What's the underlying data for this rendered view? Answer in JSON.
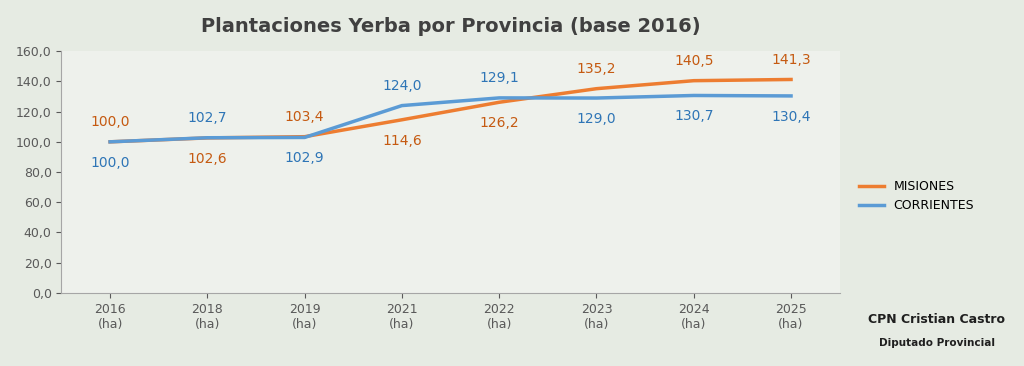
{
  "chart_data": {
    "type": "line",
    "title": "Plantaciones Yerba por Provincia (base 2016)",
    "categories": [
      "2016\n(ha)",
      "2018\n(ha)",
      "2019\n(ha)",
      "2021\n(ha)",
      "2022\n(ha)",
      "2023\n(ha)",
      "2024\n(ha)",
      "2025\n(ha)"
    ],
    "series": [
      {
        "name": "MISIONES",
        "color": "#ed7d31",
        "values": [
          100.0,
          102.6,
          103.4,
          114.6,
          126.2,
          135.2,
          140.5,
          141.3
        ],
        "value_labels": [
          "100,0",
          "102,6",
          "103,4",
          "114,6",
          "126,2",
          "135,2",
          "140,5",
          "141,3"
        ]
      },
      {
        "name": "CORRIENTES",
        "color": "#5b9bd5",
        "values": [
          100.0,
          102.7,
          102.9,
          124.0,
          129.1,
          129.0,
          130.7,
          130.4
        ],
        "value_labels": [
          "100,0",
          "102,7",
          "102,9",
          "124,0",
          "129,1",
          "129,0",
          "130,7",
          "130,4"
        ]
      }
    ],
    "ylim": [
      0,
      160
    ],
    "yticks": [
      {
        "value": 0,
        "label": "0,0"
      },
      {
        "value": 20,
        "label": "20,0"
      },
      {
        "value": 40,
        "label": "40,0"
      },
      {
        "value": 60,
        "label": "60,0"
      },
      {
        "value": 80,
        "label": "80,0"
      },
      {
        "value": 100,
        "label": "100,0"
      },
      {
        "value": 120,
        "label": "120,0"
      },
      {
        "value": 140,
        "label": "140,0"
      },
      {
        "value": 160,
        "label": "160,0"
      }
    ],
    "grid": false,
    "legend": "center left",
    "data_labels": true,
    "annotations": [
      "CPN Cristian Castro",
      "Diputado Provincial"
    ]
  }
}
